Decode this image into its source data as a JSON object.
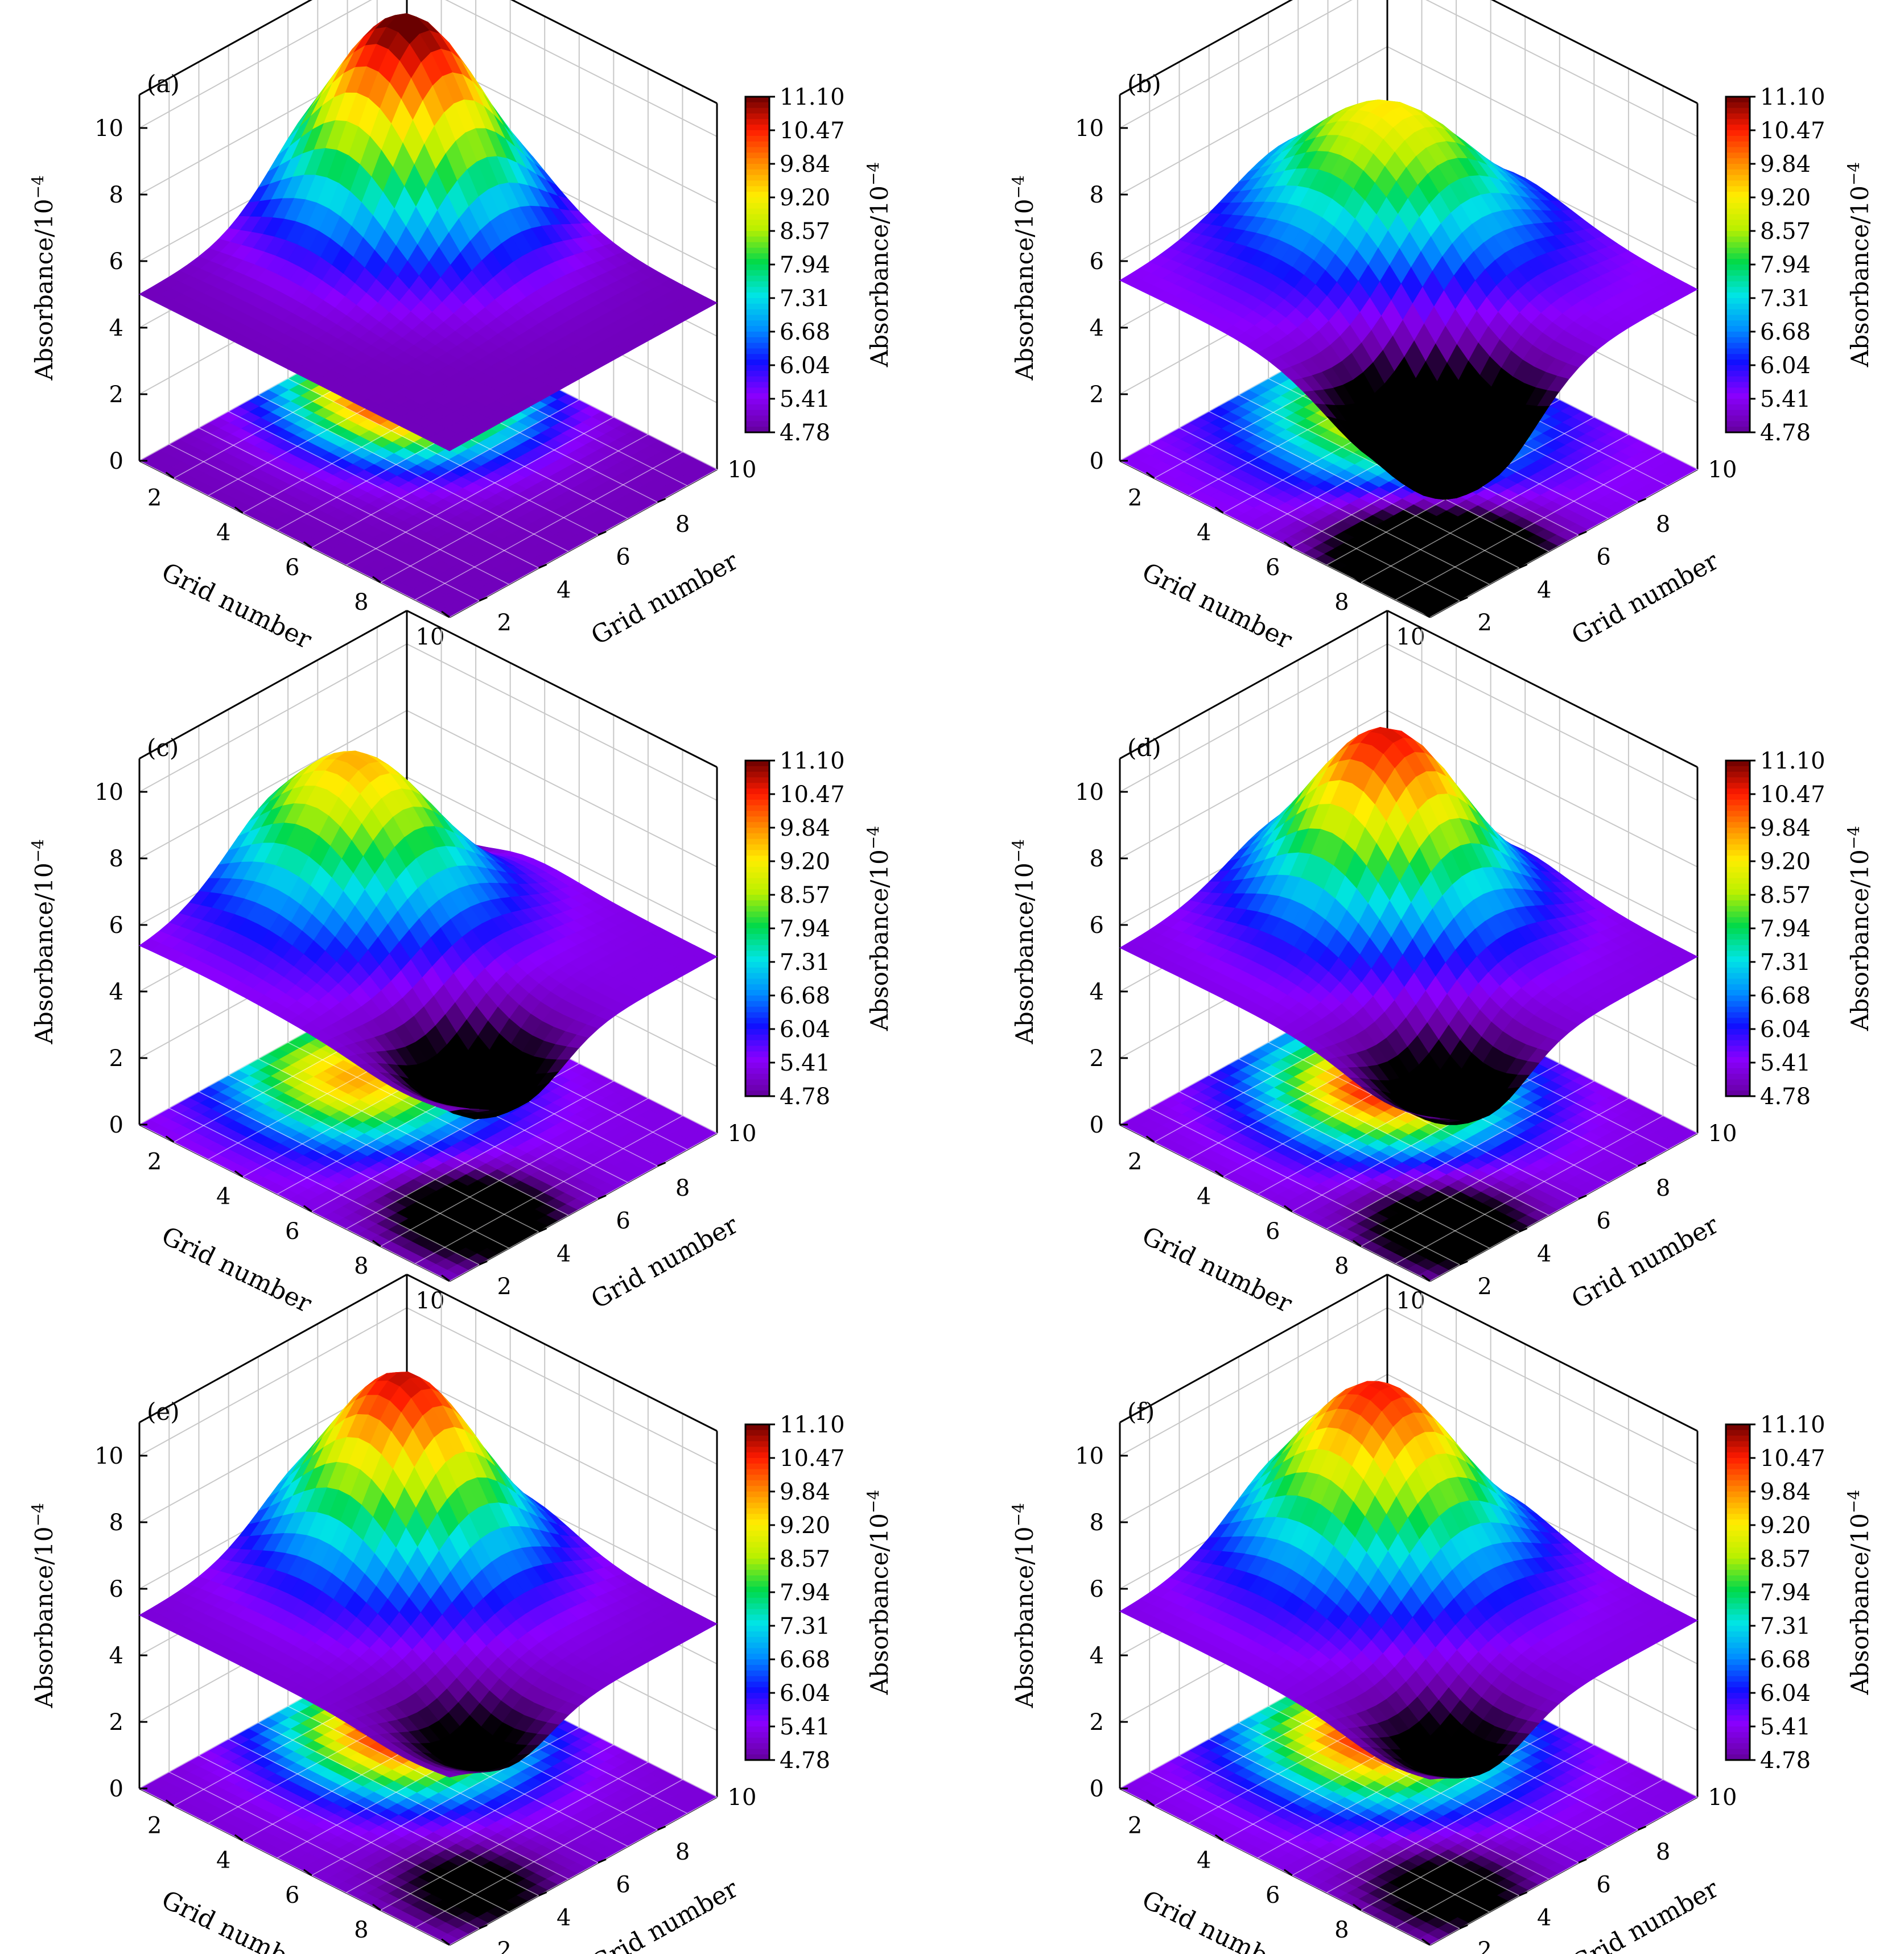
{
  "figure": {
    "z_axis_label": "Absorbance/10",
    "z_axis_label_sup": "−4",
    "x_axis_label": "Grid number",
    "y_axis_label": "Grid number",
    "colorbar_label": "Absorbance/10",
    "colorbar_label_sup": "−4",
    "colorbar_ticks": [
      "11.10",
      "10.47",
      "9.84",
      "9.20",
      "8.57",
      "7.94",
      "7.31",
      "6.68",
      "6.04",
      "5.41",
      "4.78"
    ],
    "colormap": [
      "#000000",
      "#6a00a8",
      "#8a00ff",
      "#1010ff",
      "#0090ff",
      "#00e5e5",
      "#00d94a",
      "#b8f000",
      "#ffee00",
      "#ff8a00",
      "#ff1a00",
      "#6a0000"
    ]
  },
  "chart_data": [
    {
      "type": "surface3d",
      "panel_label": "(a)",
      "x": [
        1,
        2,
        3,
        4,
        5,
        6,
        7,
        8,
        9,
        10
      ],
      "y": [
        1,
        2,
        3,
        4,
        5,
        6,
        7,
        8,
        9,
        10
      ],
      "zlim": [
        0,
        11
      ],
      "z_ticks": [
        "0",
        "2",
        "4",
        "6",
        "8",
        "10"
      ],
      "x_ticks": [
        "2",
        "4",
        "6",
        "8",
        "10"
      ],
      "y_ticks": [
        "2",
        "4",
        "6",
        "8"
      ],
      "y_end_tick": "10",
      "colorbar_range": [
        4.78,
        11.1
      ],
      "peak": {
        "x": 3.2,
        "y": 7.4,
        "height": 6.3,
        "sigma": 1.8
      },
      "base": 5.0,
      "dips": []
    },
    {
      "type": "surface3d",
      "panel_label": "(b)",
      "x": [
        1,
        2,
        3,
        4,
        5,
        6,
        7,
        8,
        9,
        10
      ],
      "y": [
        1,
        2,
        3,
        4,
        5,
        6,
        7,
        8,
        9,
        10
      ],
      "zlim": [
        0,
        11
      ],
      "z_ticks": [
        "0",
        "2",
        "4",
        "6",
        "8",
        "10"
      ],
      "x_ticks": [
        "2",
        "4",
        "6",
        "8",
        "10"
      ],
      "y_ticks": [
        "2",
        "4",
        "6",
        "8"
      ],
      "y_end_tick": "10",
      "colorbar_range": [
        4.78,
        11.1
      ],
      "peak": {
        "x": 3.8,
        "y": 6.8,
        "height": 4.0,
        "sigma": 2.0
      },
      "base": 5.4,
      "dips": [
        {
          "x": 8.6,
          "y": 3.0,
          "depth": 3.4,
          "sigma": 1.6
        },
        {
          "x": 2.5,
          "y": 9.5,
          "depth": 1.0,
          "sigma": 1.4
        }
      ]
    },
    {
      "type": "surface3d",
      "panel_label": "(c)",
      "x": [
        1,
        2,
        3,
        4,
        5,
        6,
        7,
        8,
        9,
        10
      ],
      "y": [
        1,
        2,
        3,
        4,
        5,
        6,
        7,
        8,
        9,
        10
      ],
      "zlim": [
        0,
        11
      ],
      "z_ticks": [
        "0",
        "2",
        "4",
        "6",
        "8",
        "10"
      ],
      "x_ticks": [
        "2",
        "4",
        "6",
        "8",
        "10"
      ],
      "y_ticks": [
        "2",
        "4",
        "6",
        "8"
      ],
      "y_end_tick": "10",
      "colorbar_range": [
        4.78,
        11.1
      ],
      "peak": {
        "x": 3.0,
        "y": 6.0,
        "height": 4.4,
        "sigma": 1.9
      },
      "base": 5.3,
      "dips": [
        {
          "x": 8.6,
          "y": 3.5,
          "depth": 2.2,
          "sigma": 1.3
        },
        {
          "x": 2.5,
          "y": 9.0,
          "depth": 1.2,
          "sigma": 1.2
        }
      ]
    },
    {
      "type": "surface3d",
      "panel_label": "(d)",
      "x": [
        1,
        2,
        3,
        4,
        5,
        6,
        7,
        8,
        9,
        10
      ],
      "y": [
        1,
        2,
        3,
        4,
        5,
        6,
        7,
        8,
        9,
        10
      ],
      "zlim": [
        0,
        11
      ],
      "z_ticks": [
        "0",
        "2",
        "4",
        "6",
        "8",
        "10"
      ],
      "x_ticks": [
        "2",
        "4",
        "6",
        "8",
        "10"
      ],
      "y_ticks": [
        "2",
        "4",
        "6",
        "8"
      ],
      "y_end_tick": "10",
      "colorbar_range": [
        4.78,
        11.1
      ],
      "peak": {
        "x": 4.0,
        "y": 6.5,
        "height": 5.4,
        "sigma": 1.8
      },
      "base": 5.3,
      "dips": [
        {
          "x": 8.8,
          "y": 3.0,
          "depth": 2.0,
          "sigma": 1.3
        },
        {
          "x": 2.6,
          "y": 9.4,
          "depth": 1.0,
          "sigma": 1.2
        }
      ]
    },
    {
      "type": "surface3d",
      "panel_label": "(e)",
      "x": [
        1,
        2,
        3,
        4,
        5,
        6,
        7,
        8,
        9,
        10
      ],
      "y": [
        1,
        2,
        3,
        4,
        5,
        6,
        7,
        8,
        9,
        10
      ],
      "zlim": [
        0,
        11
      ],
      "z_ticks": [
        "0",
        "2",
        "4",
        "6",
        "8",
        "10"
      ],
      "x_ticks": [
        "2",
        "4",
        "6",
        "8",
        "10"
      ],
      "y_ticks": [
        "2",
        "4",
        "6",
        "8"
      ],
      "y_end_tick": "10",
      "colorbar_range": [
        4.78,
        11.1
      ],
      "peak": {
        "x": 3.5,
        "y": 7.0,
        "height": 5.6,
        "sigma": 1.8
      },
      "base": 5.2,
      "dips": [
        {
          "x": 8.8,
          "y": 3.2,
          "depth": 1.4,
          "sigma": 1.2
        },
        {
          "x": 3.0,
          "y": 9.5,
          "depth": 0.8,
          "sigma": 1.0
        }
      ]
    },
    {
      "type": "surface3d",
      "panel_label": "(f)",
      "x": [
        1,
        2,
        3,
        4,
        5,
        6,
        7,
        8,
        9,
        10
      ],
      "y": [
        1,
        2,
        3,
        4,
        5,
        6,
        7,
        8,
        9,
        10
      ],
      "zlim": [
        0,
        11
      ],
      "z_ticks": [
        "0",
        "2",
        "4",
        "6",
        "8",
        "10"
      ],
      "x_ticks": [
        "2",
        "4",
        "6",
        "8",
        "10"
      ],
      "y_ticks": [
        "2",
        "4",
        "6",
        "8"
      ],
      "y_end_tick": "10",
      "colorbar_range": [
        4.78,
        11.1
      ],
      "peak": {
        "x": 3.5,
        "y": 6.8,
        "height": 5.3,
        "sigma": 1.9
      },
      "base": 5.3,
      "dips": [
        {
          "x": 8.8,
          "y": 3.0,
          "depth": 1.6,
          "sigma": 1.3
        },
        {
          "x": 2.5,
          "y": 9.5,
          "depth": 1.1,
          "sigma": 1.1
        }
      ]
    }
  ]
}
